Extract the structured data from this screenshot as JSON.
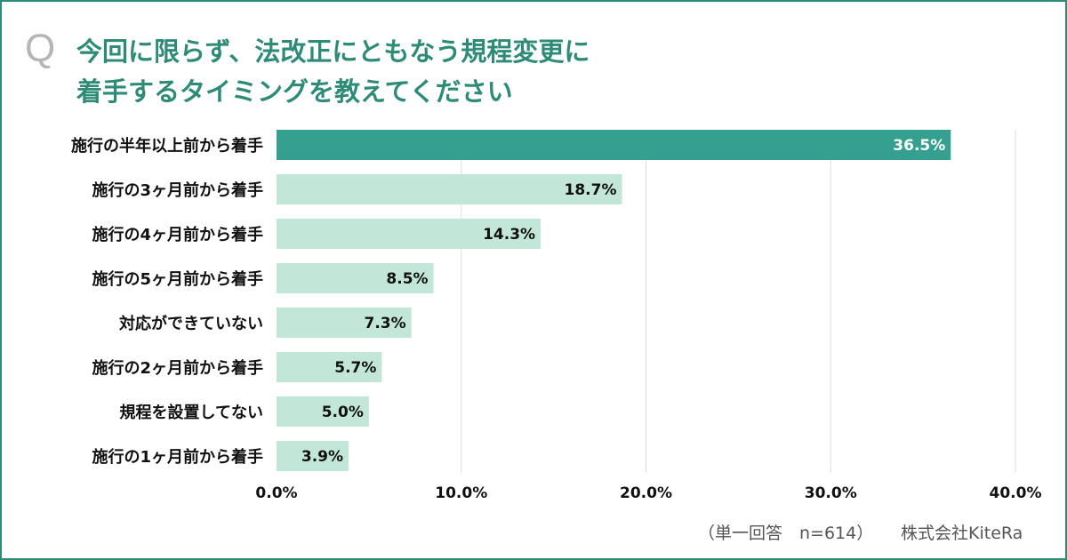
{
  "title": {
    "q_mark": "Q",
    "line1": "今回に限らず、法改正にともなう規程変更に",
    "line2": "着手するタイミングを教えてください"
  },
  "footer": {
    "note": "（単一回答　n=614）",
    "company": "株式会社KiteRa"
  },
  "colors": {
    "accent": "#2e8b78",
    "highlight_bar": "#35a090",
    "bar": "#c2e6d7"
  },
  "chart_data": {
    "type": "bar",
    "orientation": "horizontal",
    "categories": [
      "施行の半年以上前から着手",
      "施行の3ヶ月前から着手",
      "施行の4ヶ月前から着手",
      "施行の5ヶ月前から着手",
      "対応ができていない",
      "施行の2ヶ月前から着手",
      "規程を設置してない",
      "施行の1ヶ月前から着手"
    ],
    "values": [
      36.5,
      18.7,
      14.3,
      8.5,
      7.3,
      5.7,
      5.0,
      3.9
    ],
    "value_labels": [
      "36.5%",
      "18.7%",
      "14.3%",
      "8.5%",
      "7.3%",
      "5.7%",
      "5.0%",
      "3.9%"
    ],
    "xlim": [
      0,
      40
    ],
    "xticks": [
      0,
      10,
      20,
      30,
      40
    ],
    "xtick_labels": [
      "0.0%",
      "10.0%",
      "20.0%",
      "30.0%",
      "40.0%"
    ],
    "grid": true
  }
}
